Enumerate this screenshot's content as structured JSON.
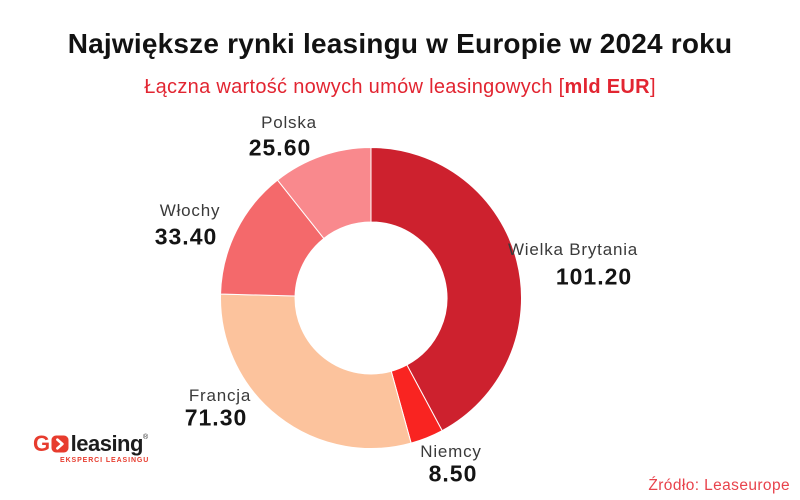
{
  "title": "Największe rynki leasingu w Europie w 2024 roku",
  "subtitle": {
    "prefix": "Łączna wartość nowych umów leasingowych [",
    "bold": "mld EUR",
    "suffix": "]"
  },
  "chart_data": {
    "type": "pie",
    "subtype": "donut",
    "title": "Największe rynki leasingu w Europie w 2024 roku",
    "unit": "mld EUR",
    "total": 240.0,
    "start_angle_deg": -90,
    "direction": "clockwise",
    "inner_radius_ratio": 0.503,
    "legend_position": "none",
    "slices": [
      {
        "id": "wielka-brytania",
        "label": "Wielka Brytania",
        "value": 101.2,
        "display": "101.20",
        "color": "#cd212e"
      },
      {
        "id": "niemcy",
        "label": "Niemcy",
        "value": 8.5,
        "display": "8.50",
        "color": "#f92421"
      },
      {
        "id": "francja",
        "label": "Francja",
        "value": 71.3,
        "display": "71.30",
        "color": "#fcc39d"
      },
      {
        "id": "wlochy",
        "label": "Włochy",
        "value": 33.4,
        "display": "33.40",
        "color": "#f4696b"
      },
      {
        "id": "polska",
        "label": "Polska",
        "value": 25.6,
        "display": "25.60",
        "color": "#f9898d"
      }
    ]
  },
  "logo": {
    "g": "G",
    "wordmark": "leasing",
    "registered": "®",
    "tagline": "EKSPERCI LEASINGU",
    "brand_color": "#e73c2e"
  },
  "source": "Źródło: Leaseurope",
  "colors": {
    "title_text": "#121212",
    "subtitle_red": "#e22531",
    "label_name": "#3a3a3a",
    "label_value": "#141414",
    "source_red": "#e8434c",
    "background": "#ffffff",
    "slice_separator": "#ffffff"
  }
}
